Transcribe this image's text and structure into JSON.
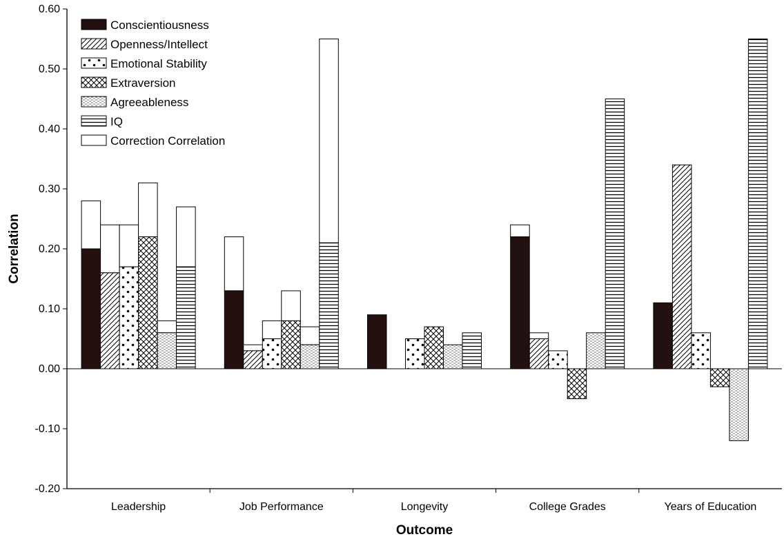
{
  "chart_data": {
    "type": "bar",
    "title": "",
    "xlabel": "Outcome",
    "ylabel": "Correlation",
    "ylim": [
      -0.2,
      0.6
    ],
    "yticks": [
      "0.60",
      "0.50",
      "0.40",
      "0.30",
      "0.20",
      "0.10",
      "0.00",
      "-0.10",
      "-0.20"
    ],
    "ytick_values": [
      0.6,
      0.5,
      0.4,
      0.3,
      0.2,
      0.1,
      0.0,
      -0.1,
      -0.2
    ],
    "grid": false,
    "legend_position": "top-left",
    "categories": [
      "Leadership",
      "Job Performance",
      "Longevity",
      "College Grades",
      "Years of Education"
    ],
    "series": [
      {
        "name": "Conscientiousness",
        "pattern": "solid",
        "values": [
          0.2,
          0.13,
          0.09,
          0.22,
          0.11
        ]
      },
      {
        "name": "Openness/Intellect",
        "pattern": "diagonal",
        "values": [
          0.16,
          0.03,
          null,
          0.05,
          0.34
        ]
      },
      {
        "name": "Emotional Stability",
        "pattern": "dots",
        "values": [
          0.17,
          0.05,
          0.05,
          0.03,
          0.06
        ]
      },
      {
        "name": "Extraversion",
        "pattern": "crosshatch",
        "values": [
          0.22,
          0.08,
          0.07,
          -0.05,
          -0.03
        ]
      },
      {
        "name": "Agreeableness",
        "pattern": "light-dash",
        "values": [
          0.06,
          0.04,
          0.04,
          0.06,
          -0.12
        ]
      },
      {
        "name": "IQ",
        "pattern": "horizontal",
        "values": [
          0.17,
          0.21,
          0.06,
          0.45,
          0.55
        ]
      },
      {
        "name": "Correction Correlation",
        "pattern": "outline",
        "values": [
          0,
          0,
          0,
          0,
          0
        ]
      }
    ],
    "corrected_totals": [
      [
        0.28,
        0.24,
        0.24,
        0.31,
        0.08,
        0.27
      ],
      [
        0.22,
        0.04,
        0.08,
        0.13,
        0.07,
        0.55
      ],
      [
        null,
        null,
        null,
        null,
        null,
        null
      ],
      [
        0.24,
        0.06,
        null,
        null,
        null,
        null
      ],
      [
        null,
        null,
        null,
        null,
        null,
        null
      ]
    ]
  },
  "colors": {
    "axis": "#000000",
    "bar_fill": "#ffffff",
    "solid_fill": "#231010"
  }
}
